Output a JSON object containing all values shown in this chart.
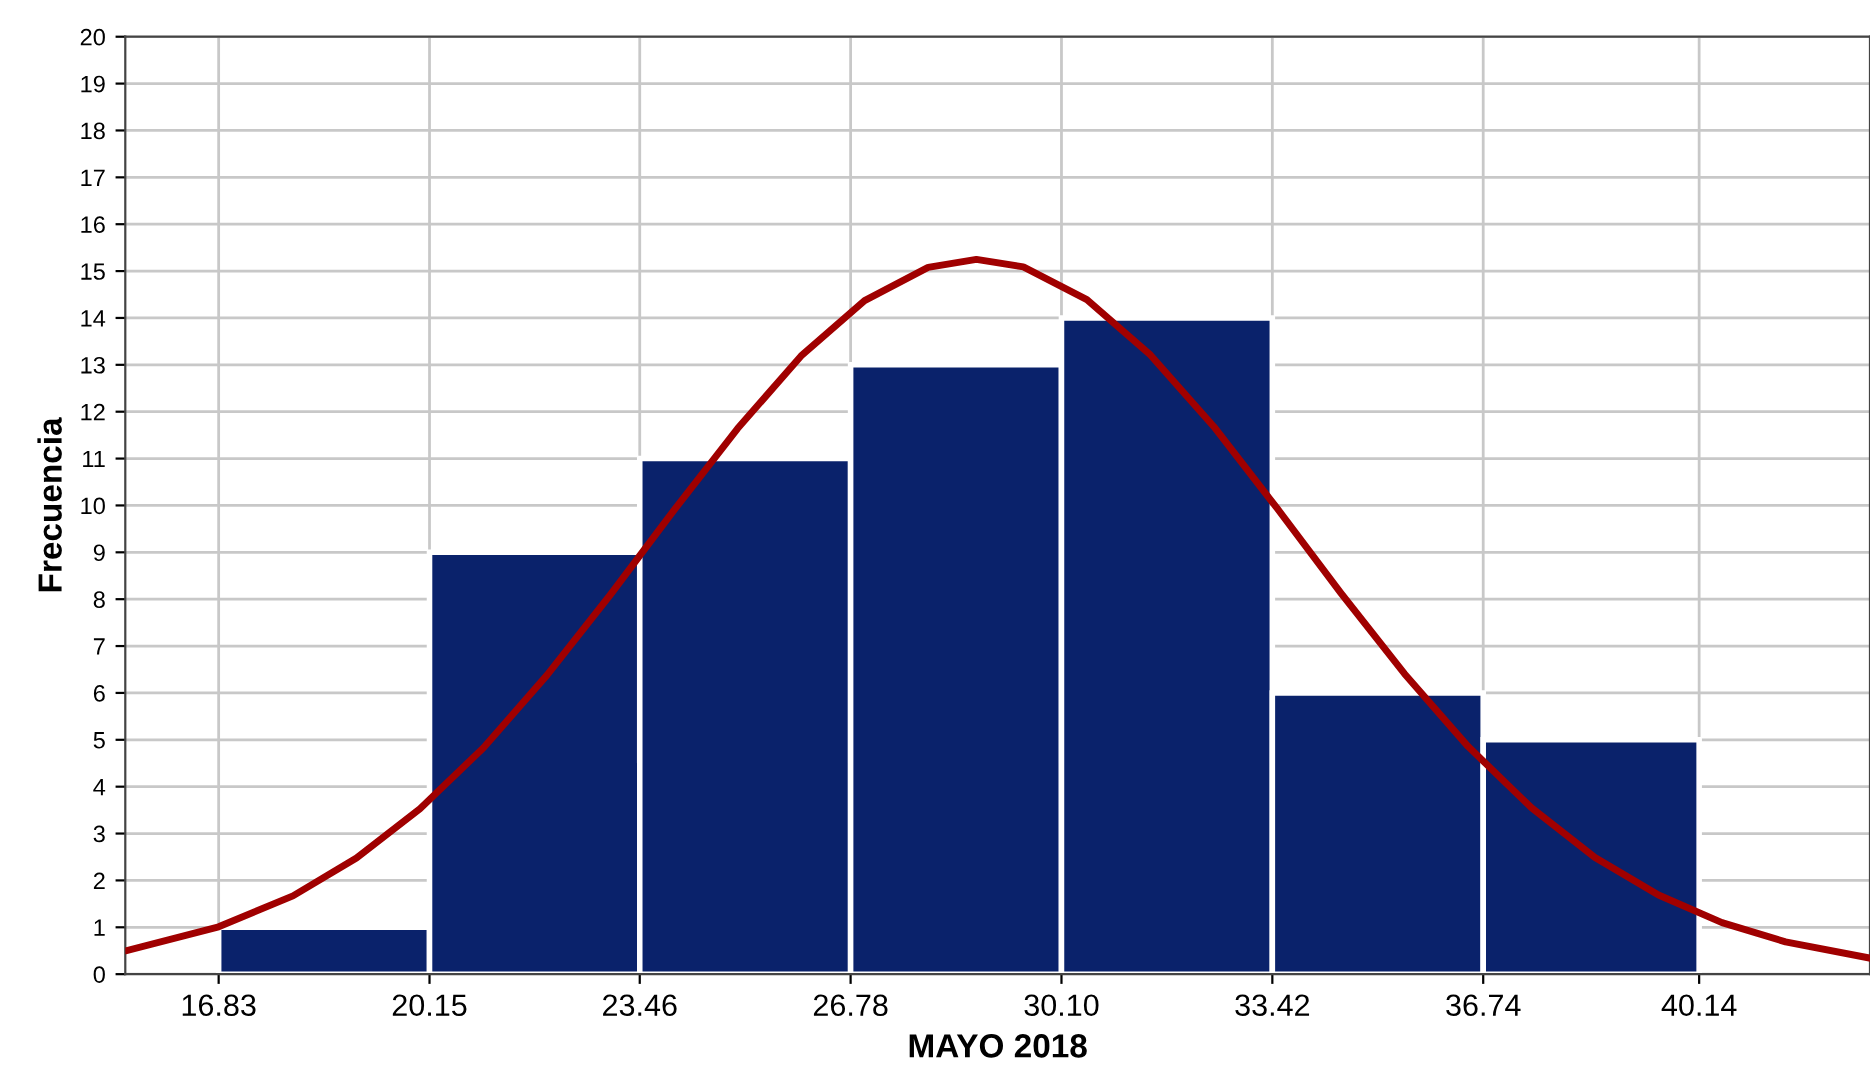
{
  "chart_data": {
    "type": "histogram",
    "xlabel": "MAYO 2018",
    "ylabel": "Frecuencia",
    "bins": [
      16.83,
      20.15,
      23.46,
      26.78,
      30.1,
      33.42,
      36.74,
      40.14
    ],
    "values": [
      1,
      9,
      11,
      13,
      14,
      6,
      5
    ],
    "color": "#0a226b",
    "series": [
      {
        "type": "line",
        "color": "#a00000",
        "x": [
          15.4,
          16.83,
          18,
          19,
          20,
          21,
          22,
          23,
          24,
          25,
          26,
          27,
          28,
          28.76,
          29.5,
          30.5,
          31.5,
          32.5,
          33.5,
          34.5,
          35.5,
          36.5,
          37.5,
          38.5,
          39.5,
          40.5,
          41.5,
          42.8
        ],
        "values": [
          0.51,
          1.01,
          1.67,
          2.48,
          3.53,
          4.83,
          6.38,
          8.1,
          9.9,
          11.64,
          13.19,
          14.37,
          15.08,
          15.25,
          15.09,
          14.39,
          13.21,
          11.68,
          9.93,
          8.13,
          6.41,
          4.86,
          3.55,
          2.49,
          1.69,
          1.1,
          0.69,
          0.35
        ]
      }
    ],
    "xlim": [
      15.36,
      42.83
    ],
    "ylim": [
      0,
      20
    ],
    "xticks": [
      16.83,
      20.15,
      23.46,
      26.78,
      {
        "value": 30.1,
        "label": "30.10"
      },
      33.42,
      36.74,
      40.14
    ],
    "yticks": [
      0,
      1,
      2,
      3,
      4,
      5,
      6,
      7,
      8,
      9,
      10,
      11,
      12,
      13,
      14,
      15,
      16,
      17,
      18,
      19,
      20
    ],
    "grid": true,
    "legend": false
  }
}
